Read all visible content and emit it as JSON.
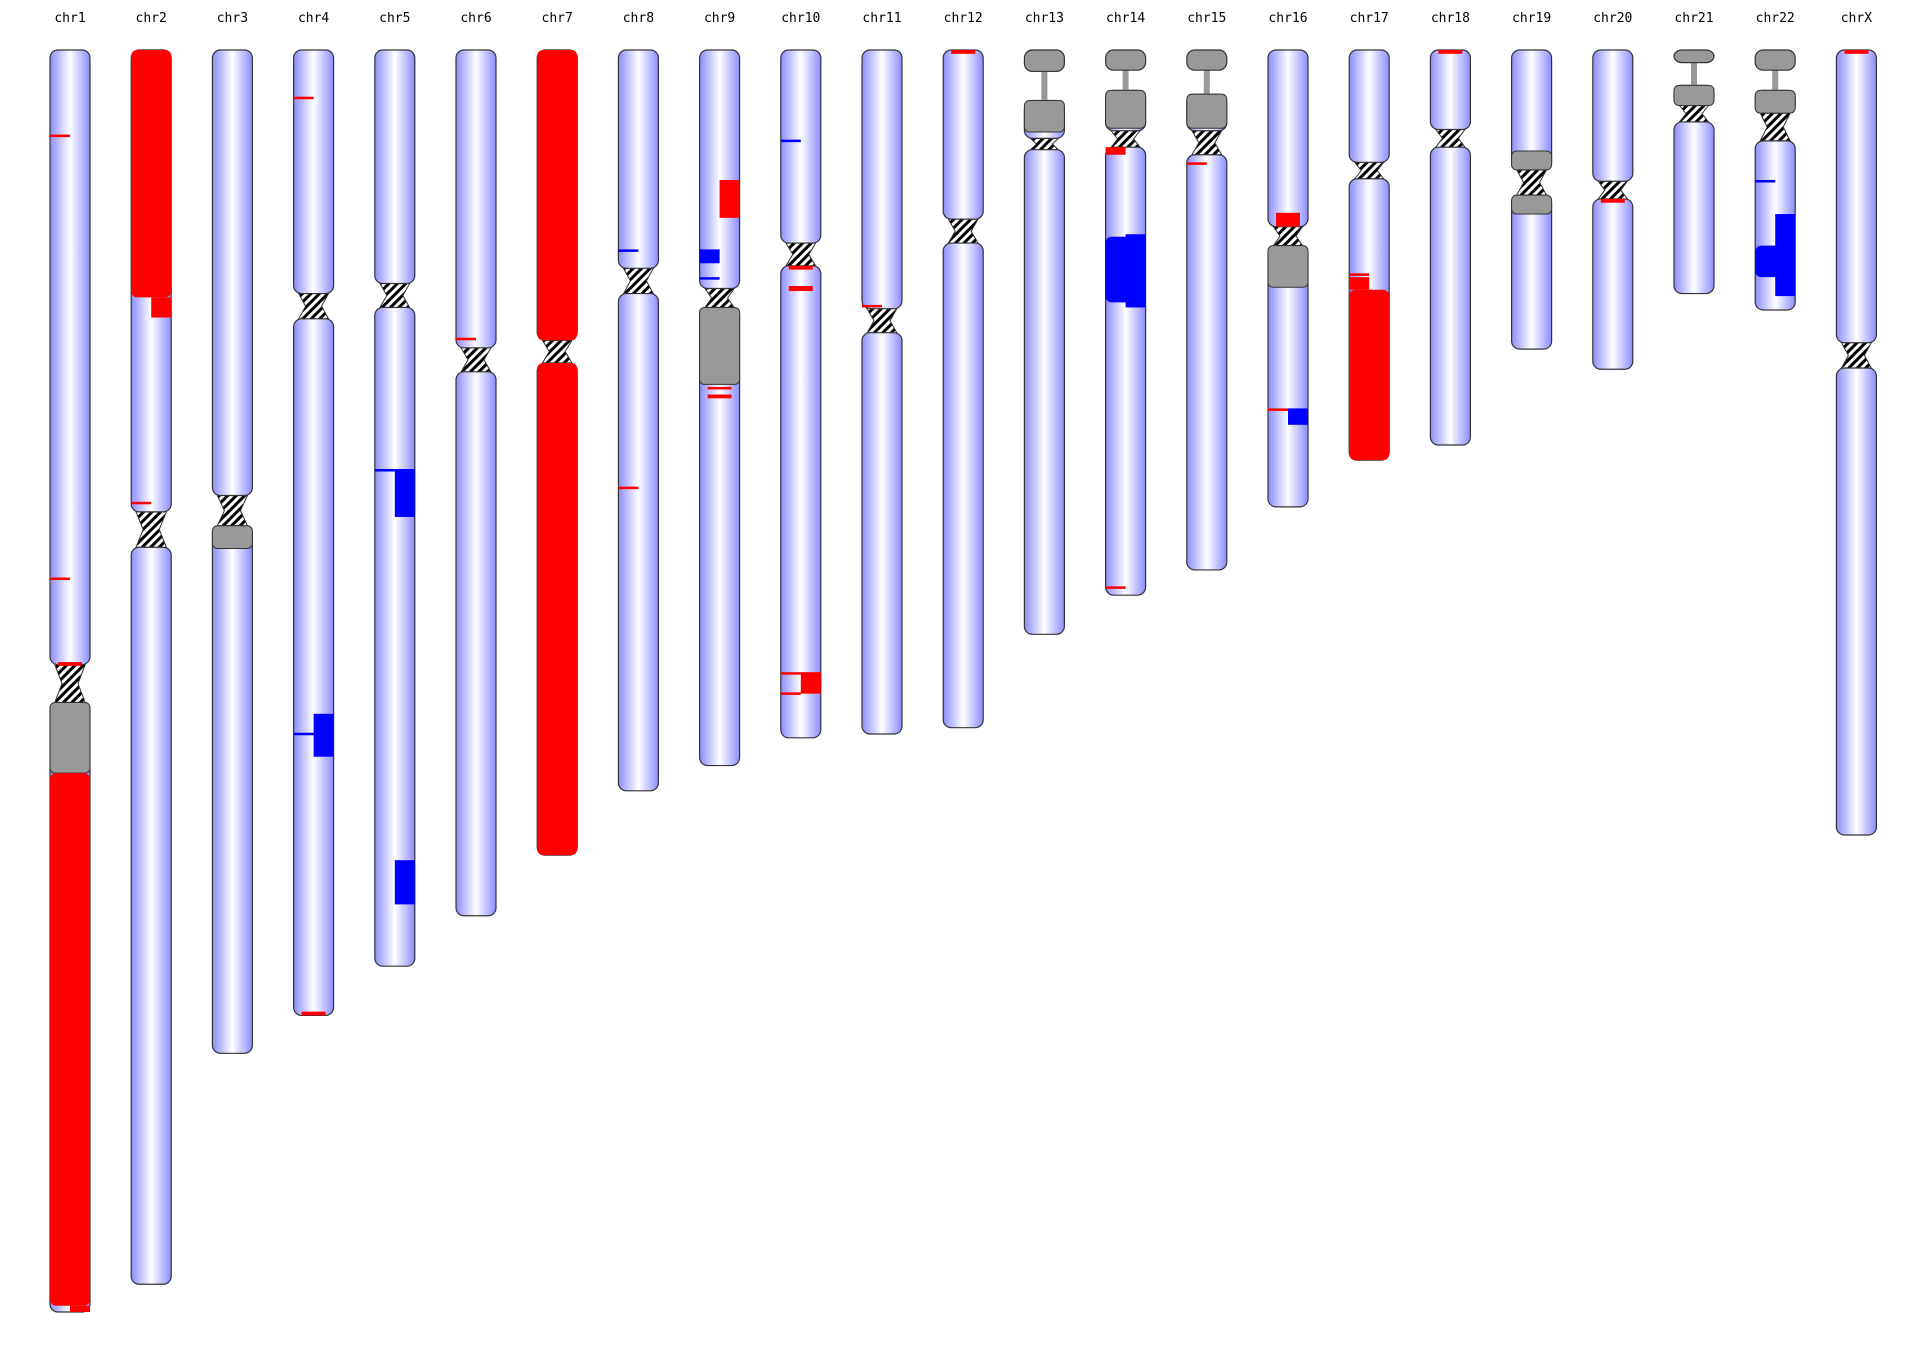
{
  "colors": {
    "body_light": "#ffffff",
    "body_dark": "#8c8cff",
    "outline": "#333333",
    "gain": "#ff0000",
    "loss": "#0000ff",
    "heterochromatin": "#999999",
    "stalk": "#999999"
  },
  "chromosomes": [
    {
      "label": "chr1",
      "p_bottom": 0.487,
      "q_top": 0.517,
      "length": 1.0,
      "hetero": [
        [
          0.517,
          0.573
        ]
      ],
      "cnv": [
        {
          "t": "gain",
          "s": 0.067,
          "e": 0.069,
          "w": "line"
        },
        {
          "t": "gain",
          "s": 0.418,
          "e": 0.42,
          "w": "line"
        },
        {
          "t": "gain",
          "s": 0.485,
          "e": 0.488,
          "w": "half"
        },
        {
          "t": "gain",
          "s": 0.573,
          "e": 0.995,
          "w": "full"
        },
        {
          "t": "gain",
          "s": 0.995,
          "e": 1.0,
          "w": "right"
        }
      ]
    },
    {
      "label": "chr2",
      "p_bottom": 0.366,
      "q_top": 0.394,
      "length": 0.978,
      "hetero": [],
      "cnv": [
        {
          "t": "gain",
          "s": 0.0,
          "e": 0.196,
          "w": "full"
        },
        {
          "t": "gain",
          "s": 0.196,
          "e": 0.212,
          "w": "right"
        },
        {
          "t": "gain",
          "s": 0.358,
          "e": 0.36,
          "w": "line"
        }
      ]
    },
    {
      "label": "chr3",
      "p_bottom": 0.353,
      "q_top": 0.377,
      "length": 0.795,
      "hetero": [
        [
          0.377,
          0.395
        ]
      ],
      "cnv": []
    },
    {
      "label": "chr4",
      "p_bottom": 0.193,
      "q_top": 0.213,
      "length": 0.765,
      "hetero": [],
      "cnv": [
        {
          "t": "gain",
          "s": 0.037,
          "e": 0.039,
          "w": "line"
        },
        {
          "t": "loss",
          "s": 0.526,
          "e": 0.56,
          "w": "right"
        },
        {
          "t": "loss",
          "s": 0.541,
          "e": 0.543,
          "w": "line"
        },
        {
          "t": "gain",
          "s": 0.762,
          "e": 0.765,
          "w": "half"
        }
      ]
    },
    {
      "label": "chr5",
      "p_bottom": 0.185,
      "q_top": 0.204,
      "length": 0.726,
      "hetero": [],
      "cnv": [
        {
          "t": "loss",
          "s": 0.332,
          "e": 0.37,
          "w": "right"
        },
        {
          "t": "loss",
          "s": 0.332,
          "e": 0.334,
          "w": "line"
        },
        {
          "t": "loss",
          "s": 0.642,
          "e": 0.677,
          "w": "right"
        }
      ]
    },
    {
      "label": "chr6",
      "p_bottom": 0.236,
      "q_top": 0.255,
      "length": 0.686,
      "hetero": [],
      "cnv": [
        {
          "t": "gain",
          "s": 0.228,
          "e": 0.23,
          "w": "line"
        }
      ]
    },
    {
      "label": "chr7",
      "p_bottom": 0.23,
      "q_top": 0.248,
      "length": 0.638,
      "hetero": [],
      "cnv": [
        {
          "t": "gain",
          "s": 0.0,
          "e": 0.23,
          "w": "full"
        },
        {
          "t": "gain",
          "s": 0.248,
          "e": 0.638,
          "w": "full"
        }
      ]
    },
    {
      "label": "chr8",
      "p_bottom": 0.173,
      "q_top": 0.193,
      "length": 0.587,
      "hetero": [],
      "cnv": [
        {
          "t": "loss",
          "s": 0.158,
          "e": 0.16,
          "w": "line"
        },
        {
          "t": "gain",
          "s": 0.346,
          "e": 0.348,
          "w": "line"
        }
      ]
    },
    {
      "label": "chr9",
      "p_bottom": 0.189,
      "q_top": 0.204,
      "length": 0.567,
      "hetero": [
        [
          0.204,
          0.265
        ]
      ],
      "cnv": [
        {
          "t": "gain",
          "s": 0.103,
          "e": 0.133,
          "w": "right"
        },
        {
          "t": "loss",
          "s": 0.158,
          "e": 0.169,
          "w": "left"
        },
        {
          "t": "loss",
          "s": 0.18,
          "e": 0.182,
          "w": "line"
        },
        {
          "t": "gain",
          "s": 0.267,
          "e": 0.269,
          "w": "half"
        },
        {
          "t": "gain",
          "s": 0.273,
          "e": 0.276,
          "w": "half"
        }
      ]
    },
    {
      "label": "chr10",
      "p_bottom": 0.153,
      "q_top": 0.171,
      "length": 0.545,
      "hetero": [],
      "cnv": [
        {
          "t": "loss",
          "s": 0.071,
          "e": 0.073,
          "w": "line"
        },
        {
          "t": "gain",
          "s": 0.171,
          "e": 0.174,
          "w": "half"
        },
        {
          "t": "gain",
          "s": 0.187,
          "e": 0.191,
          "w": "half"
        },
        {
          "t": "gain",
          "s": 0.493,
          "e": 0.51,
          "w": "right"
        },
        {
          "t": "gain",
          "s": 0.493,
          "e": 0.495,
          "w": "line"
        },
        {
          "t": "gain",
          "s": 0.509,
          "e": 0.511,
          "w": "line"
        }
      ]
    },
    {
      "label": "chr11",
      "p_bottom": 0.205,
      "q_top": 0.224,
      "length": 0.542,
      "hetero": [],
      "cnv": [
        {
          "t": "gain",
          "s": 0.202,
          "e": 0.204,
          "w": "line"
        }
      ]
    },
    {
      "label": "chr12",
      "p_bottom": 0.134,
      "q_top": 0.153,
      "length": 0.537,
      "hetero": [],
      "cnv": [
        {
          "t": "gain",
          "s": 0.0,
          "e": 0.003,
          "w": "half"
        }
      ]
    },
    {
      "label": "chr13",
      "p_bottom": 0.07,
      "q_top": 0.079,
      "length": 0.463,
      "acro": true,
      "sat": [
        0.0,
        0.017
      ],
      "stalk": [
        0.017,
        0.04
      ],
      "hetero": [
        [
          0.04,
          0.065
        ]
      ],
      "cnv": []
    },
    {
      "label": "chr14",
      "p_bottom": 0.064,
      "q_top": 0.077,
      "length": 0.432,
      "acro": true,
      "sat": [
        0.0,
        0.016
      ],
      "stalk": [
        0.016,
        0.032
      ],
      "hetero": [
        [
          0.032,
          0.062
        ]
      ],
      "cnv": [
        {
          "t": "gain",
          "s": 0.077,
          "e": 0.083,
          "w": "left"
        },
        {
          "t": "loss",
          "s": 0.148,
          "e": 0.2,
          "w": "full"
        },
        {
          "t": "loss",
          "s": 0.146,
          "e": 0.204,
          "w": "right"
        },
        {
          "t": "gain",
          "s": 0.425,
          "e": 0.427,
          "w": "line"
        }
      ]
    },
    {
      "label": "chr15",
      "p_bottom": 0.064,
      "q_top": 0.083,
      "length": 0.412,
      "acro": true,
      "sat": [
        0.0,
        0.016
      ],
      "stalk": [
        0.016,
        0.035
      ],
      "hetero": [
        [
          0.035,
          0.062
        ]
      ],
      "cnv": [
        {
          "t": "gain",
          "s": 0.089,
          "e": 0.091,
          "w": "line"
        }
      ]
    },
    {
      "label": "chr16",
      "p_bottom": 0.14,
      "q_top": 0.155,
      "length": 0.362,
      "hetero": [
        [
          0.155,
          0.188
        ]
      ],
      "cnv": [
        {
          "t": "gain",
          "s": 0.129,
          "e": 0.14,
          "w": "half"
        },
        {
          "t": "loss",
          "s": 0.284,
          "e": 0.297,
          "w": "right"
        },
        {
          "t": "gain",
          "s": 0.284,
          "e": 0.286,
          "w": "line"
        }
      ]
    },
    {
      "label": "chr17",
      "p_bottom": 0.089,
      "q_top": 0.102,
      "length": 0.325,
      "hetero": [],
      "cnv": [
        {
          "t": "gain",
          "s": 0.177,
          "e": 0.179,
          "w": "line"
        },
        {
          "t": "gain",
          "s": 0.18,
          "e": 0.19,
          "w": "left"
        },
        {
          "t": "gain",
          "s": 0.19,
          "e": 0.325,
          "w": "full"
        }
      ]
    },
    {
      "label": "chr18",
      "p_bottom": 0.063,
      "q_top": 0.077,
      "length": 0.313,
      "hetero": [],
      "cnv": [
        {
          "t": "gain",
          "s": 0.0,
          "e": 0.003,
          "w": "half"
        }
      ]
    },
    {
      "label": "chr19",
      "p_bottom": 0.095,
      "q_top": 0.115,
      "length": 0.237,
      "hetero": [
        [
          0.08,
          0.095
        ],
        [
          0.115,
          0.13
        ]
      ],
      "cnv": []
    },
    {
      "label": "chr20",
      "p_bottom": 0.104,
      "q_top": 0.118,
      "length": 0.253,
      "hetero": [],
      "cnv": [
        {
          "t": "gain",
          "s": 0.118,
          "e": 0.121,
          "w": "half"
        }
      ]
    },
    {
      "label": "chr21",
      "p_bottom": 0.044,
      "q_top": 0.057,
      "length": 0.193,
      "acro": true,
      "sat": [
        0.0,
        0.01
      ],
      "stalk": [
        0.01,
        0.028
      ],
      "hetero": [
        [
          0.028,
          0.044
        ]
      ],
      "cnv": []
    },
    {
      "label": "chr22",
      "p_bottom": 0.05,
      "q_top": 0.072,
      "length": 0.206,
      "acro": true,
      "sat": [
        0.0,
        0.016
      ],
      "stalk": [
        0.016,
        0.032
      ],
      "hetero": [
        [
          0.032,
          0.05
        ]
      ],
      "cnv": [
        {
          "t": "loss",
          "s": 0.103,
          "e": 0.105,
          "w": "line"
        },
        {
          "t": "loss",
          "s": 0.155,
          "e": 0.18,
          "w": "full"
        },
        {
          "t": "loss",
          "s": 0.13,
          "e": 0.195,
          "w": "right"
        }
      ]
    },
    {
      "label": "chrX",
      "p_bottom": 0.232,
      "q_top": 0.252,
      "length": 0.622,
      "hetero": [],
      "cnv": [
        {
          "t": "gain",
          "s": 0.0,
          "e": 0.003,
          "w": "half"
        }
      ]
    }
  ]
}
